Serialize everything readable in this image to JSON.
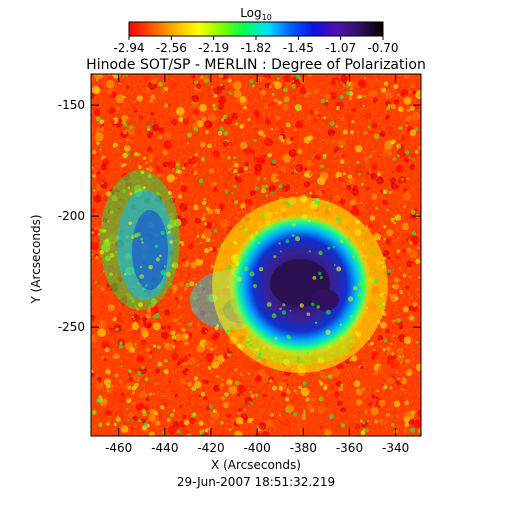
{
  "figure": {
    "colorbar_label": "Log",
    "colorbar_label_sub": "10",
    "colorbar_ticks": [
      "-2.94",
      "-2.56",
      "-2.19",
      "-1.82",
      "-1.45",
      "-1.07",
      "-0.70"
    ],
    "title": "Hinode SOT/SP - MERLIN : Degree of Polarization",
    "x_label": "X (Arcseconds)",
    "y_label": "Y (Arcseconds)",
    "x_ticks": [
      "-460",
      "-440",
      "-420",
      "-400",
      "-380",
      "-360",
      "-340"
    ],
    "y_ticks": [
      "-150",
      "-200",
      "-250"
    ],
    "timestamp": "29-Jun-2007 18:51:32.219"
  },
  "colors": {
    "colormap": [
      "#ff0000",
      "#ff5a00",
      "#ffb400",
      "#ffff00",
      "#7fff00",
      "#00ff50",
      "#00e0ff",
      "#0060ff",
      "#1010e0",
      "#5010b0",
      "#301060",
      "#000000"
    ],
    "map_background": "#ff3a00"
  }
}
